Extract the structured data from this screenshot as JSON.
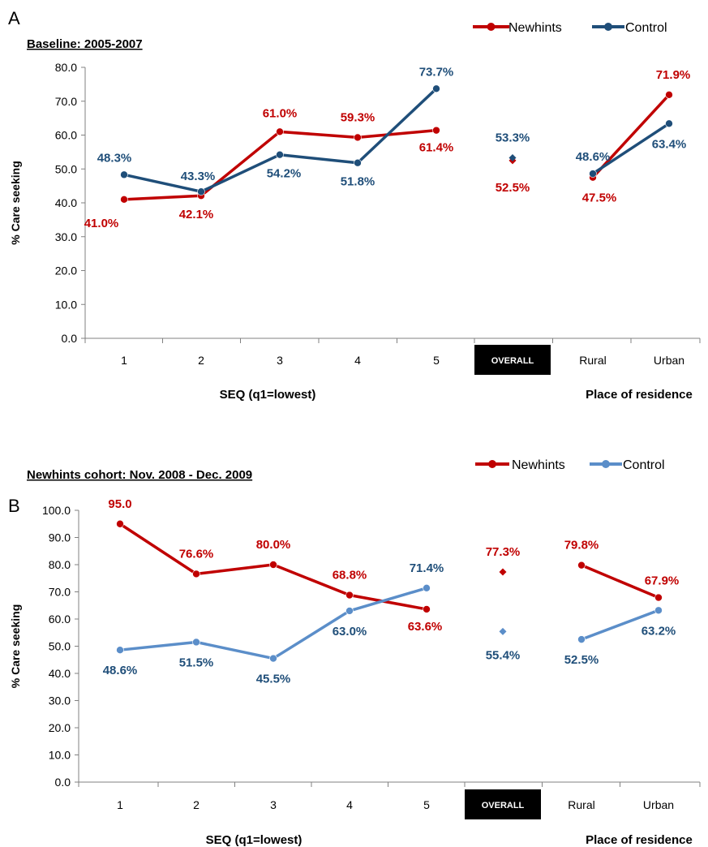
{
  "colors": {
    "newhints_a": "#c00000",
    "control_a": "#1f4e79",
    "newhints_b": "#c00000",
    "control_b": "#5b8ec9",
    "control_label": "#1f4e79",
    "axis": "#808080",
    "overall_box": "#000000"
  },
  "chart_data": [
    {
      "type": "line",
      "panel": "A",
      "title": "Baseline: 2005-2007",
      "ylabel": "% Care seeking",
      "xlabel_left": "SEQ (q1=lowest)",
      "xlabel_right": "Place of residence",
      "ylim": [
        0,
        80
      ],
      "yticks": [
        "0.0",
        "10.0",
        "20.0",
        "30.0",
        "40.0",
        "50.0",
        "60.0",
        "70.0",
        "80.0"
      ],
      "categories": [
        "1",
        "2",
        "3",
        "4",
        "5",
        "OVERALL",
        "Rural",
        "Urban"
      ],
      "overall_label": "OVERALL",
      "legend": [
        "Newhints",
        "Control"
      ],
      "legend_position": "top-right",
      "grid": false,
      "series": [
        {
          "name": "Newhints",
          "color_key": "newhints_a",
          "seq_values": [
            41.0,
            42.1,
            61.0,
            59.3,
            61.4
          ],
          "overall": 52.5,
          "place_values": [
            47.5,
            71.9
          ],
          "seq_labels": [
            "41.0%",
            "42.1%",
            "61.0%",
            "59.3%",
            "61.4%"
          ],
          "overall_label": "52.5%",
          "place_labels": [
            "47.5%",
            "71.9%"
          ]
        },
        {
          "name": "Control",
          "color_key": "control_a",
          "seq_values": [
            48.3,
            43.3,
            54.2,
            51.8,
            73.7
          ],
          "overall": 53.3,
          "place_values": [
            48.6,
            63.4
          ],
          "seq_labels": [
            "48.3%",
            "43.3%",
            "54.2%",
            "51.8%",
            "73.7%"
          ],
          "overall_label": "53.3%",
          "place_labels": [
            "48.6%",
            "63.4%"
          ]
        }
      ]
    },
    {
      "type": "line",
      "panel": "B",
      "title": "Newhints cohort: Nov. 2008 - Dec. 2009",
      "ylabel": "% Care seeking",
      "xlabel_left": "SEQ (q1=lowest)",
      "xlabel_right": "Place of residence",
      "ylim": [
        0,
        100
      ],
      "yticks": [
        "0.0",
        "10.0",
        "20.0",
        "30.0",
        "40.0",
        "50.0",
        "60.0",
        "70.0",
        "80.0",
        "90.0",
        "100.0"
      ],
      "categories": [
        "1",
        "2",
        "3",
        "4",
        "5",
        "OVERALL",
        "Rural",
        "Urban"
      ],
      "overall_label": "OVERALL",
      "legend": [
        "Newhints",
        "Control"
      ],
      "legend_position": "top-right",
      "grid": false,
      "series": [
        {
          "name": "Newhints",
          "color_key": "newhints_b",
          "seq_values": [
            95.0,
            76.6,
            80.0,
            68.8,
            63.6
          ],
          "overall": 77.3,
          "place_values": [
            79.8,
            67.9
          ],
          "seq_labels": [
            "95.0",
            "76.6%",
            "80.0%",
            "68.8%",
            "63.6%"
          ],
          "overall_label": "77.3%",
          "place_labels": [
            "79.8%",
            "67.9%"
          ]
        },
        {
          "name": "Control",
          "color_key": "control_b",
          "seq_values": [
            48.6,
            51.5,
            45.5,
            63.0,
            71.4
          ],
          "overall": 55.4,
          "place_values": [
            52.5,
            63.2
          ],
          "seq_labels": [
            "48.6%",
            "51.5%",
            "45.5%",
            "63.0%",
            "71.4%"
          ],
          "overall_label": "55.4%",
          "place_labels": [
            "52.5%",
            "63.2%"
          ]
        }
      ]
    }
  ]
}
